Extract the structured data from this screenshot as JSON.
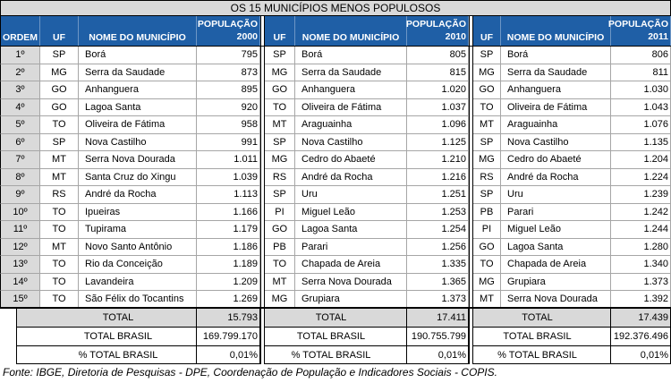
{
  "title": "OS 15 MUNICÍPIOS MENOS POPULOSOS",
  "header": {
    "ordem": "ORDEM",
    "groups": [
      {
        "uf": "UF",
        "municipio": "NOME DO MUNICÍPIO",
        "populacao": "POPULAÇÃO",
        "year": "2000"
      },
      {
        "uf": "UF",
        "municipio": "NOME DO MUNICÍPIO",
        "populacao": "POPULAÇÃO",
        "year": "2010"
      },
      {
        "uf": "UF",
        "municipio": "NOME DO MUNICÍPIO",
        "populacao": "POPULAÇÃO",
        "year": "2011"
      }
    ]
  },
  "rows": [
    {
      "ordem": "1º",
      "groups": [
        {
          "uf": "SP",
          "municipio": "Borá",
          "populacao": "795"
        },
        {
          "uf": "SP",
          "municipio": "Borá",
          "populacao": "805"
        },
        {
          "uf": "SP",
          "municipio": "Borá",
          "populacao": "806"
        }
      ]
    },
    {
      "ordem": "2º",
      "groups": [
        {
          "uf": "MG",
          "municipio": "Serra da Saudade",
          "populacao": "873"
        },
        {
          "uf": "MG",
          "municipio": "Serra da Saudade",
          "populacao": "815"
        },
        {
          "uf": "MG",
          "municipio": "Serra da Saudade",
          "populacao": "811"
        }
      ]
    },
    {
      "ordem": "3º",
      "groups": [
        {
          "uf": "GO",
          "municipio": "Anhanguera",
          "populacao": "895"
        },
        {
          "uf": "GO",
          "municipio": "Anhanguera",
          "populacao": "1.020"
        },
        {
          "uf": "GO",
          "municipio": "Anhanguera",
          "populacao": "1.030"
        }
      ]
    },
    {
      "ordem": "4º",
      "groups": [
        {
          "uf": "GO",
          "municipio": "Lagoa Santa",
          "populacao": "920"
        },
        {
          "uf": "TO",
          "municipio": "Oliveira de Fátima",
          "populacao": "1.037"
        },
        {
          "uf": "TO",
          "municipio": "Oliveira de Fátima",
          "populacao": "1.043"
        }
      ]
    },
    {
      "ordem": "5º",
      "groups": [
        {
          "uf": "TO",
          "municipio": "Oliveira de Fátima",
          "populacao": "958"
        },
        {
          "uf": "MT",
          "municipio": "Araguainha",
          "populacao": "1.096"
        },
        {
          "uf": "MT",
          "municipio": "Araguainha",
          "populacao": "1.076"
        }
      ]
    },
    {
      "ordem": "6º",
      "groups": [
        {
          "uf": "SP",
          "municipio": "Nova Castilho",
          "populacao": "991"
        },
        {
          "uf": "SP",
          "municipio": "Nova Castilho",
          "populacao": "1.125"
        },
        {
          "uf": "SP",
          "municipio": "Nova Castilho",
          "populacao": "1.135"
        }
      ]
    },
    {
      "ordem": "7º",
      "groups": [
        {
          "uf": "MT",
          "municipio": "Serra Nova Dourada",
          "populacao": "1.011"
        },
        {
          "uf": "MG",
          "municipio": "Cedro do Abaeté",
          "populacao": "1.210"
        },
        {
          "uf": "MG",
          "municipio": "Cedro do Abaeté",
          "populacao": "1.204"
        }
      ]
    },
    {
      "ordem": "8º",
      "groups": [
        {
          "uf": "MT",
          "municipio": "Santa Cruz do Xingu",
          "populacao": "1.039"
        },
        {
          "uf": "RS",
          "municipio": "André da Rocha",
          "populacao": "1.216"
        },
        {
          "uf": "RS",
          "municipio": "André da Rocha",
          "populacao": "1.224"
        }
      ]
    },
    {
      "ordem": "9º",
      "groups": [
        {
          "uf": "RS",
          "municipio": "André da Rocha",
          "populacao": "1.113"
        },
        {
          "uf": "SP",
          "municipio": "Uru",
          "populacao": "1.251"
        },
        {
          "uf": "SP",
          "municipio": "Uru",
          "populacao": "1.239"
        }
      ]
    },
    {
      "ordem": "10º",
      "groups": [
        {
          "uf": "TO",
          "municipio": "Ipueiras",
          "populacao": "1.166"
        },
        {
          "uf": "PI",
          "municipio": "Miguel Leão",
          "populacao": "1.253"
        },
        {
          "uf": "PB",
          "municipio": "Parari",
          "populacao": "1.242"
        }
      ]
    },
    {
      "ordem": "11º",
      "groups": [
        {
          "uf": "TO",
          "municipio": "Tupirama",
          "populacao": "1.179"
        },
        {
          "uf": "GO",
          "municipio": "Lagoa Santa",
          "populacao": "1.254"
        },
        {
          "uf": "PI",
          "municipio": "Miguel Leão",
          "populacao": "1.244"
        }
      ]
    },
    {
      "ordem": "12º",
      "groups": [
        {
          "uf": "MT",
          "municipio": "Novo Santo Antônio",
          "populacao": "1.186"
        },
        {
          "uf": "PB",
          "municipio": "Parari",
          "populacao": "1.256"
        },
        {
          "uf": "GO",
          "municipio": "Lagoa Santa",
          "populacao": "1.280"
        }
      ]
    },
    {
      "ordem": "13º",
      "groups": [
        {
          "uf": "TO",
          "municipio": "Rio da Conceição",
          "populacao": "1.189"
        },
        {
          "uf": "TO",
          "municipio": "Chapada de Areia",
          "populacao": "1.335"
        },
        {
          "uf": "TO",
          "municipio": "Chapada de Areia",
          "populacao": "1.340"
        }
      ]
    },
    {
      "ordem": "14º",
      "groups": [
        {
          "uf": "TO",
          "municipio": "Lavandeira",
          "populacao": "1.209"
        },
        {
          "uf": "MT",
          "municipio": "Serra Nova Dourada",
          "populacao": "1.365"
        },
        {
          "uf": "MG",
          "municipio": "Grupiara",
          "populacao": "1.373"
        }
      ]
    },
    {
      "ordem": "15º",
      "groups": [
        {
          "uf": "TO",
          "municipio": "São Félix do Tocantins",
          "populacao": "1.269"
        },
        {
          "uf": "MG",
          "municipio": "Grupiara",
          "populacao": "1.373"
        },
        {
          "uf": "MT",
          "municipio": "Serra Nova Dourada",
          "populacao": "1.392"
        }
      ]
    }
  ],
  "totals": {
    "total": {
      "label": "TOTAL",
      "values": [
        "15.793",
        "17.411",
        "17.439"
      ]
    },
    "brasil": {
      "label": "TOTAL BRASIL",
      "values": [
        "169.799.170",
        "190.755.799",
        "192.376.496"
      ]
    },
    "percent": {
      "label": "% TOTAL BRASIL",
      "values": [
        "0,01%",
        "0,01%",
        "0,01%"
      ]
    }
  },
  "source": "Fonte: IBGE, Diretoria de Pesquisas - DPE, Coordenação de População e Indicadores Sociais - COPIS.",
  "colors": {
    "header_bg": "#1f5fa6",
    "header_text": "#ffffff",
    "title_bg": "#d9d9d9",
    "ordem_bg": "#dadada",
    "total_bg": "#d9d9d9"
  }
}
